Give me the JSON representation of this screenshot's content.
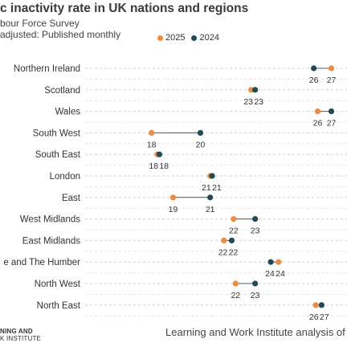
{
  "title": "c inactivity rate in UK nations and regions",
  "subtitle_1": "bour Force Survey",
  "subtitle_2": "adjusted: Published monthly",
  "legend": [
    {
      "name": "2025",
      "color": "#ef8a3e"
    },
    {
      "name": "2024",
      "color": "#1f4a57"
    }
  ],
  "logo_line1": "NING AND",
  "logo_line2": "K INSTITUTE",
  "source": "Learning and Work Institute analysis of",
  "chart_data": {
    "type": "dumbbell",
    "x_domain_visible": [
      16,
      28
    ],
    "grid": "horizontal-dashed",
    "categories": [
      "Northern Ireland",
      "Scotland",
      "Wales",
      "South West",
      "South East",
      "London",
      "East",
      "West Midlands",
      "East Midlands",
      "e and The Humber",
      "North West",
      "North East"
    ],
    "series": [
      {
        "name": "2025",
        "color": "#ef8a3e",
        "values": [
          27.2,
          23.1,
          26.5,
          18.0,
          18.3,
          21.0,
          19.1,
          22.2,
          21.7,
          24.5,
          22.3,
          26.4
        ]
      },
      {
        "name": "2024",
        "color": "#1f4a57",
        "values": [
          26.3,
          23.3,
          27.2,
          20.5,
          18.4,
          21.1,
          21.0,
          23.3,
          22.1,
          24.1,
          23.3,
          26.7
        ]
      }
    ],
    "labels_2025": [
      "27",
      "23",
      "26",
      "18",
      "18",
      "21",
      "19",
      "22",
      "22",
      "24",
      "22",
      "26"
    ],
    "labels_2024": [
      "26",
      "23",
      "27",
      "20",
      "18",
      "21",
      "21",
      "23",
      "22",
      "24",
      "23",
      "27"
    ]
  }
}
